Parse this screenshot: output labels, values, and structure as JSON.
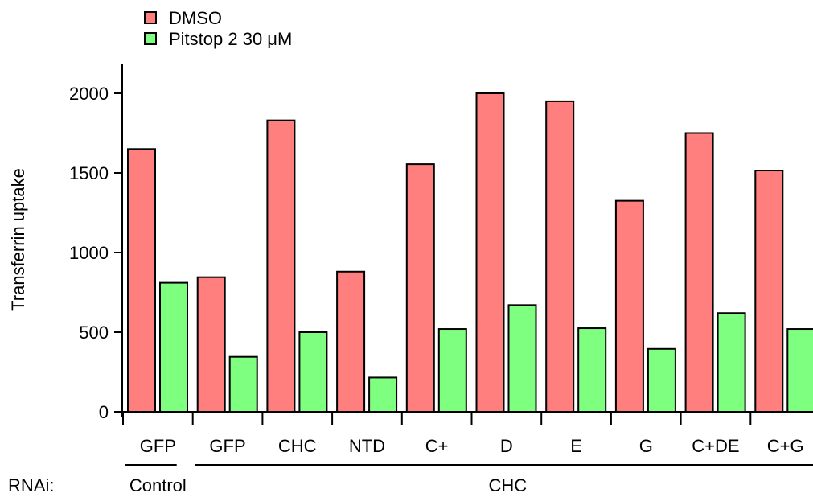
{
  "chart_data": {
    "type": "bar",
    "categories": [
      "GFP",
      "GFP",
      "CHC",
      "NTD",
      "C+",
      "D",
      "E",
      "G",
      "C+DE",
      "C+G"
    ],
    "series": [
      {
        "name": "DMSO",
        "values": [
          1650,
          845,
          1830,
          880,
          1555,
          2000,
          1950,
          1325,
          1750,
          1515
        ],
        "color": "#ff7f7f"
      },
      {
        "name": "Pitstop 2 30 μM",
        "values": [
          810,
          345,
          500,
          215,
          520,
          670,
          525,
          395,
          620,
          520
        ],
        "color": "#7fff7f"
      }
    ],
    "ylabel": "Transferrin uptake",
    "ylim": [
      0,
      2000
    ],
    "yticks": [
      0,
      500,
      1000,
      1500,
      2000
    ],
    "grid": false,
    "legend_position": "top-left",
    "group_row_label": "RNAi:",
    "groups": [
      {
        "label": "Control",
        "categories": [
          "GFP"
        ]
      },
      {
        "label": "CHC",
        "categories": [
          "GFP",
          "CHC",
          "NTD",
          "C+",
          "D",
          "E",
          "G",
          "C+DE",
          "C+G"
        ]
      }
    ]
  }
}
